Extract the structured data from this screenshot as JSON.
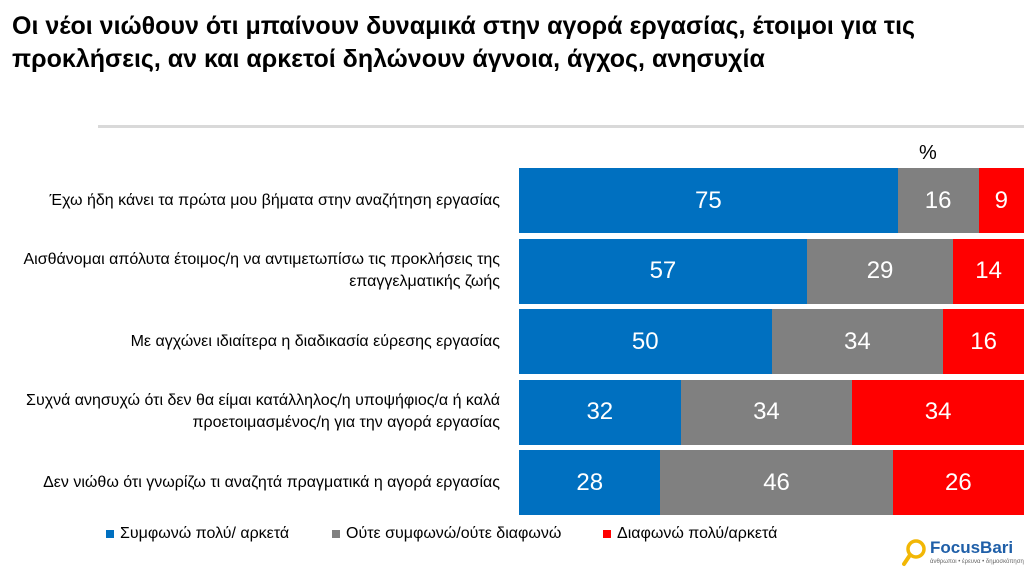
{
  "title": "Οι νέοι νιώθουν ότι μπαίνουν δυναμικά στην αγορά εργασίας, έτοιμοι για τις προκλήσεις, αν και αρκετοί δηλώνουν άγνοια, άγχος, ανησυχία",
  "chart_data": {
    "type": "bar",
    "orientation": "horizontal",
    "stacked": true,
    "unit_label": "%",
    "categories": [
      "Έχω ήδη κάνει τα πρώτα μου βήματα στην αναζήτηση εργασίας",
      "Αισθάνομαι απόλυτα  έτοιμος/η να αντιμετωπίσω τις προκλήσεις της επαγγελματικής ζωής",
      "Με αγχώνει ιδιαίτερα η διαδικασία εύρεσης εργασίας",
      "Συχνά ανησυχώ ότι δεν θα είμαι κατάλληλος/η υποψήφιος/α ή καλά προετοιμασμένος/η για την αγορά εργασίας",
      "Δεν νιώθω ότι γνωρίζω τι αναζητά πραγματικά η αγορά εργασίας"
    ],
    "series": [
      {
        "name": "Συμφωνώ πολύ/ αρκετά",
        "color": "#0070c0",
        "values": [
          75,
          57,
          50,
          32,
          28
        ]
      },
      {
        "name": "Ούτε συμφωνώ/ούτε διαφωνώ",
        "color": "#808080",
        "values": [
          16,
          29,
          34,
          34,
          46
        ]
      },
      {
        "name": "Διαφωνώ πολύ/αρκετά",
        "color": "#ff0000",
        "values": [
          9,
          14,
          16,
          34,
          26
        ]
      }
    ],
    "xlim": [
      0,
      100
    ],
    "legend_position": "bottom"
  },
  "logo": {
    "name": "FocusBari",
    "tagline": "άνθρωποι • έρευνα • δημοσκόπηση"
  }
}
